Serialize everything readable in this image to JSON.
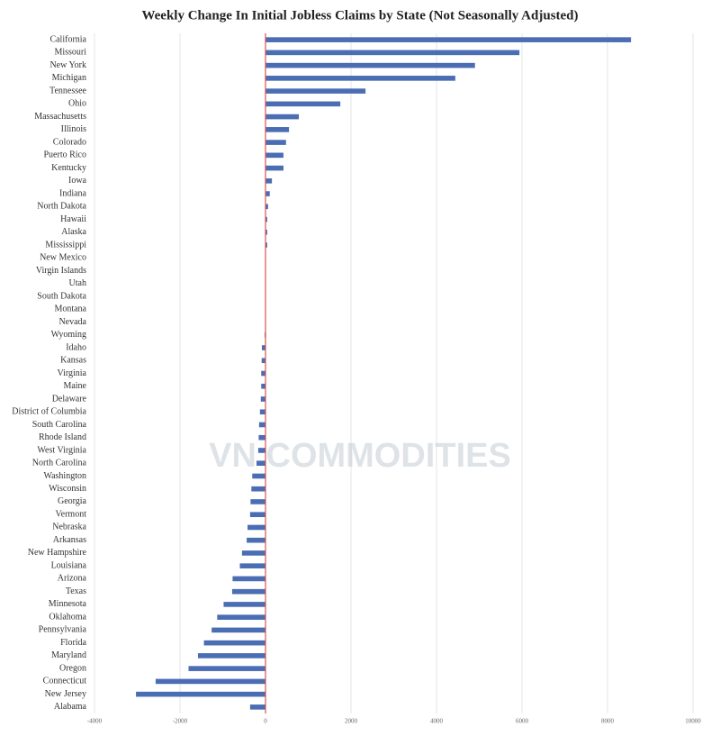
{
  "chart_data": {
    "type": "hbar",
    "title": "Weekly Change In Initial Jobless Claims by State (Not Seasonally Adjusted)",
    "watermark": "VN COMMODITIES",
    "categories": [
      "California",
      "Missouri",
      "New York",
      "Michigan",
      "Tennessee",
      "Ohio",
      "Massachusetts",
      "Illinois",
      "Colorado",
      "Puerto Rico",
      "Kentucky",
      "Iowa",
      "Indiana",
      "North Dakota",
      "Hawaii",
      "Alaska",
      "Mississippi",
      "New Mexico",
      "Virgin Islands",
      "Utah",
      "South Dakota",
      "Montana",
      "Nevada",
      "Wyoming",
      "Idaho",
      "Kansas",
      "Virginia",
      "Maine",
      "Delaware",
      "District of Columbia",
      "South Carolina",
      "Rhode Island",
      "West Virginia",
      "North Carolina",
      "Washington",
      "Wisconsin",
      "Georgia",
      "Vermont",
      "Nebraska",
      "Arkansas",
      "New Hampshire",
      "Louisiana",
      "Arizona",
      "Texas",
      "Minnesota",
      "Oklahoma",
      "Pennsylvania",
      "Florida",
      "Maryland",
      "Oregon",
      "Connecticut",
      "New Jersey",
      "Alabama"
    ],
    "values": [
      8550,
      5940,
      4900,
      4440,
      2340,
      1750,
      780,
      550,
      480,
      420,
      420,
      150,
      100,
      60,
      40,
      40,
      40,
      10,
      5,
      0,
      0,
      0,
      -10,
      -20,
      -85,
      -90,
      -100,
      -100,
      -110,
      -130,
      -150,
      -160,
      -170,
      -210,
      -310,
      -330,
      -350,
      -360,
      -420,
      -440,
      -550,
      -600,
      -770,
      -780,
      -980,
      -1130,
      -1260,
      -1440,
      -1580,
      -1800,
      -2570,
      -3030,
      -360
    ],
    "color": "#4a6db3",
    "zero_line_color": "#d9534f",
    "xlim": [
      -4000,
      10000
    ],
    "xticks": [
      -4000,
      -2000,
      0,
      2000,
      4000,
      6000,
      8000,
      10000
    ],
    "grid": true
  }
}
